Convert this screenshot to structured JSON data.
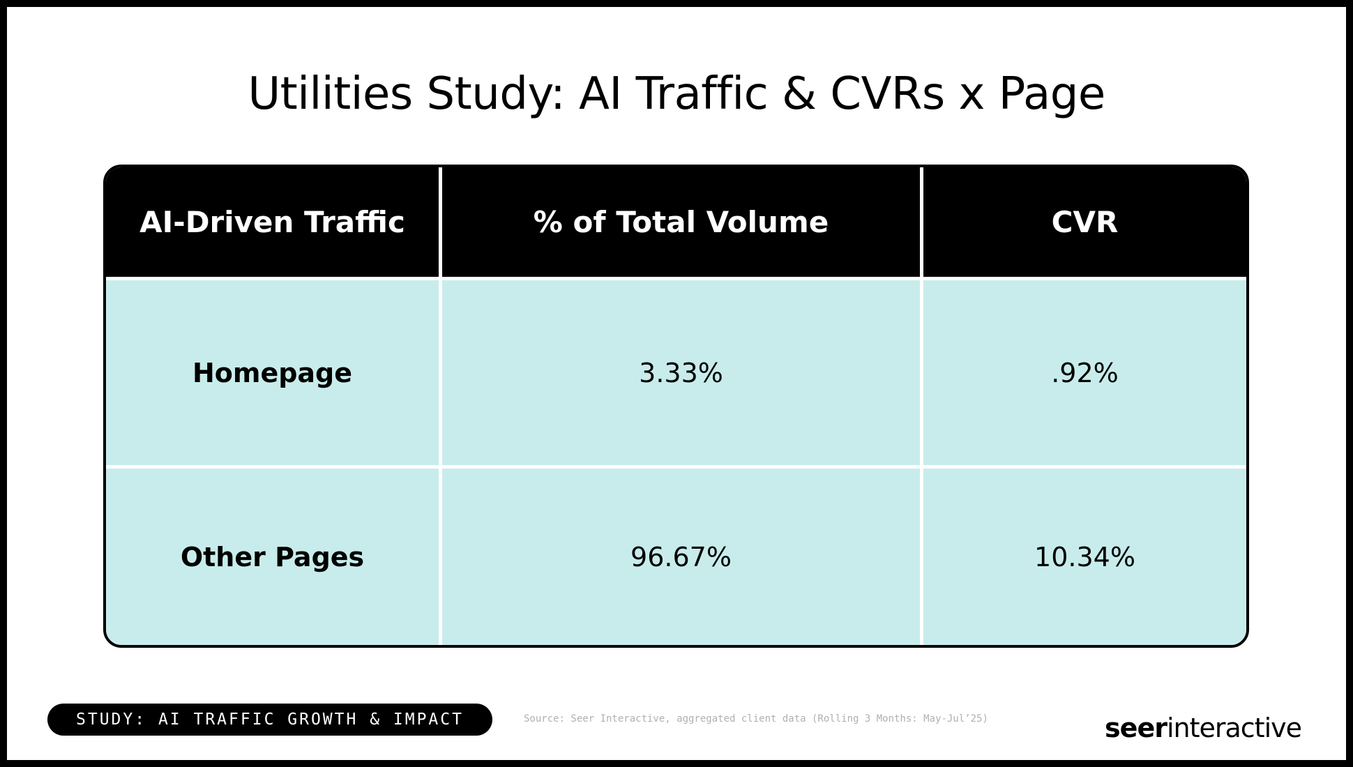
{
  "header": {
    "title": "Utilities Study: AI Traffic & CVRs x Page"
  },
  "table": {
    "headers": [
      "AI-Driven Traffic",
      "% of Total Volume",
      "CVR"
    ],
    "rows": [
      [
        "Homepage",
        "3.33%",
        ".92%"
      ],
      [
        "Other Pages",
        "96.67%",
        "10.34%"
      ]
    ]
  },
  "footer": {
    "badge": "STUDY: AI TRAFFIC GROWTH & IMPACT",
    "source": "Source: Seer Interactive, aggregated client data (Rolling 3 Months: May-Jul’25)",
    "logo": [
      "seer",
      "interactive"
    ]
  }
}
